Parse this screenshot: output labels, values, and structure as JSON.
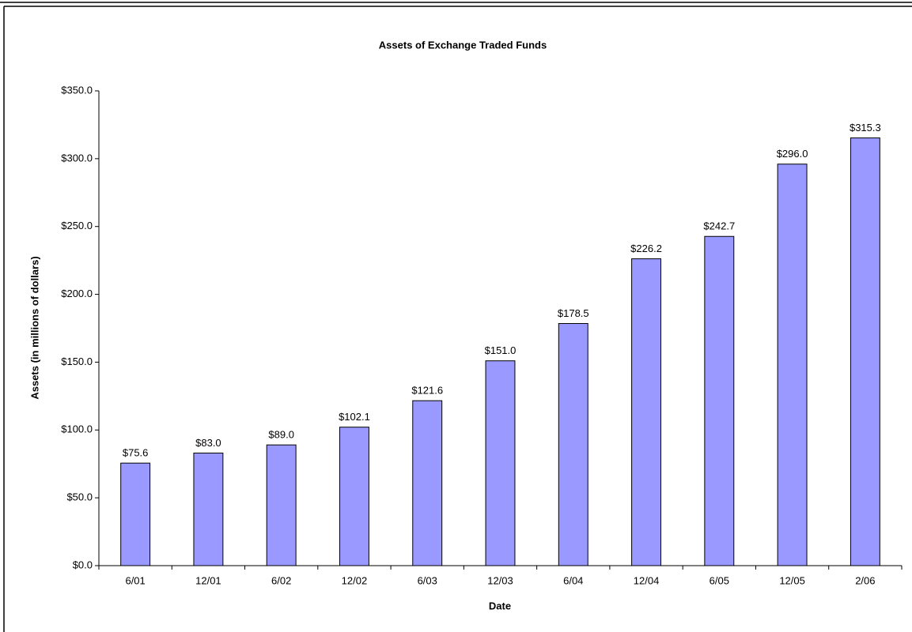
{
  "chart_data": {
    "type": "bar",
    "title": "Assets of Exchange Traded Funds",
    "x_label": "Date",
    "y_label": "Assets (in millions of dollars)",
    "categories": [
      "6/01",
      "12/01",
      "6/02",
      "12/02",
      "6/03",
      "12/03",
      "6/04",
      "12/04",
      "6/05",
      "12/05",
      "2/06"
    ],
    "values": [
      75.6,
      83.0,
      89.0,
      102.1,
      121.6,
      151.0,
      178.5,
      226.2,
      242.7,
      296.0,
      315.3
    ],
    "value_labels": [
      "$75.6",
      "$83.0",
      "$89.0",
      "$102.1",
      "$121.6",
      "$151.0",
      "$178.5",
      "$226.2",
      "$242.7",
      "$296.0",
      "$315.3"
    ],
    "color": "#9999ff",
    "ylim": [
      0,
      350
    ],
    "yticks": [
      {
        "value": 0,
        "label": "$0.0"
      },
      {
        "value": 50,
        "label": "$50.0"
      },
      {
        "value": 100,
        "label": "$100.0"
      },
      {
        "value": 150,
        "label": "$150.0"
      },
      {
        "value": 200,
        "label": "$200.0"
      },
      {
        "value": 250,
        "label": "$250.0"
      },
      {
        "value": 300,
        "label": "$300.0"
      },
      {
        "value": 350,
        "label": "$350.0"
      }
    ],
    "grid": false
  }
}
